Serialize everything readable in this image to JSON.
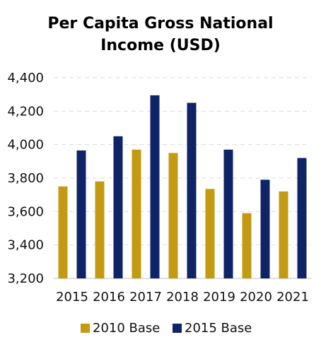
{
  "chart_data": {
    "type": "bar",
    "title": "Per Capita Gross National Income (USD)",
    "title_lines": [
      "Per Capita Gross National",
      "Income (USD)"
    ],
    "xlabel": "",
    "ylabel": "",
    "categories": [
      "2015",
      "2016",
      "2017",
      "2018",
      "2019",
      "2020",
      "2021"
    ],
    "series": [
      {
        "name": "2010 Base",
        "color": "#c49a12",
        "values": [
          3750,
          3780,
          3970,
          3950,
          3735,
          3590,
          3720
        ]
      },
      {
        "name": "2015 Base",
        "color": "#0f2466",
        "values": [
          3965,
          4050,
          4295,
          4250,
          3970,
          3790,
          3920
        ]
      }
    ],
    "ylim": [
      3200,
      4400
    ],
    "yticks": [
      3200,
      3400,
      3600,
      3800,
      4000,
      4200,
      4400
    ],
    "ytick_labels": [
      "3,200",
      "3,400",
      "3,600",
      "3,800",
      "4,000",
      "4,200",
      "4,400"
    ],
    "grid": true,
    "legend_position": "bottom"
  }
}
